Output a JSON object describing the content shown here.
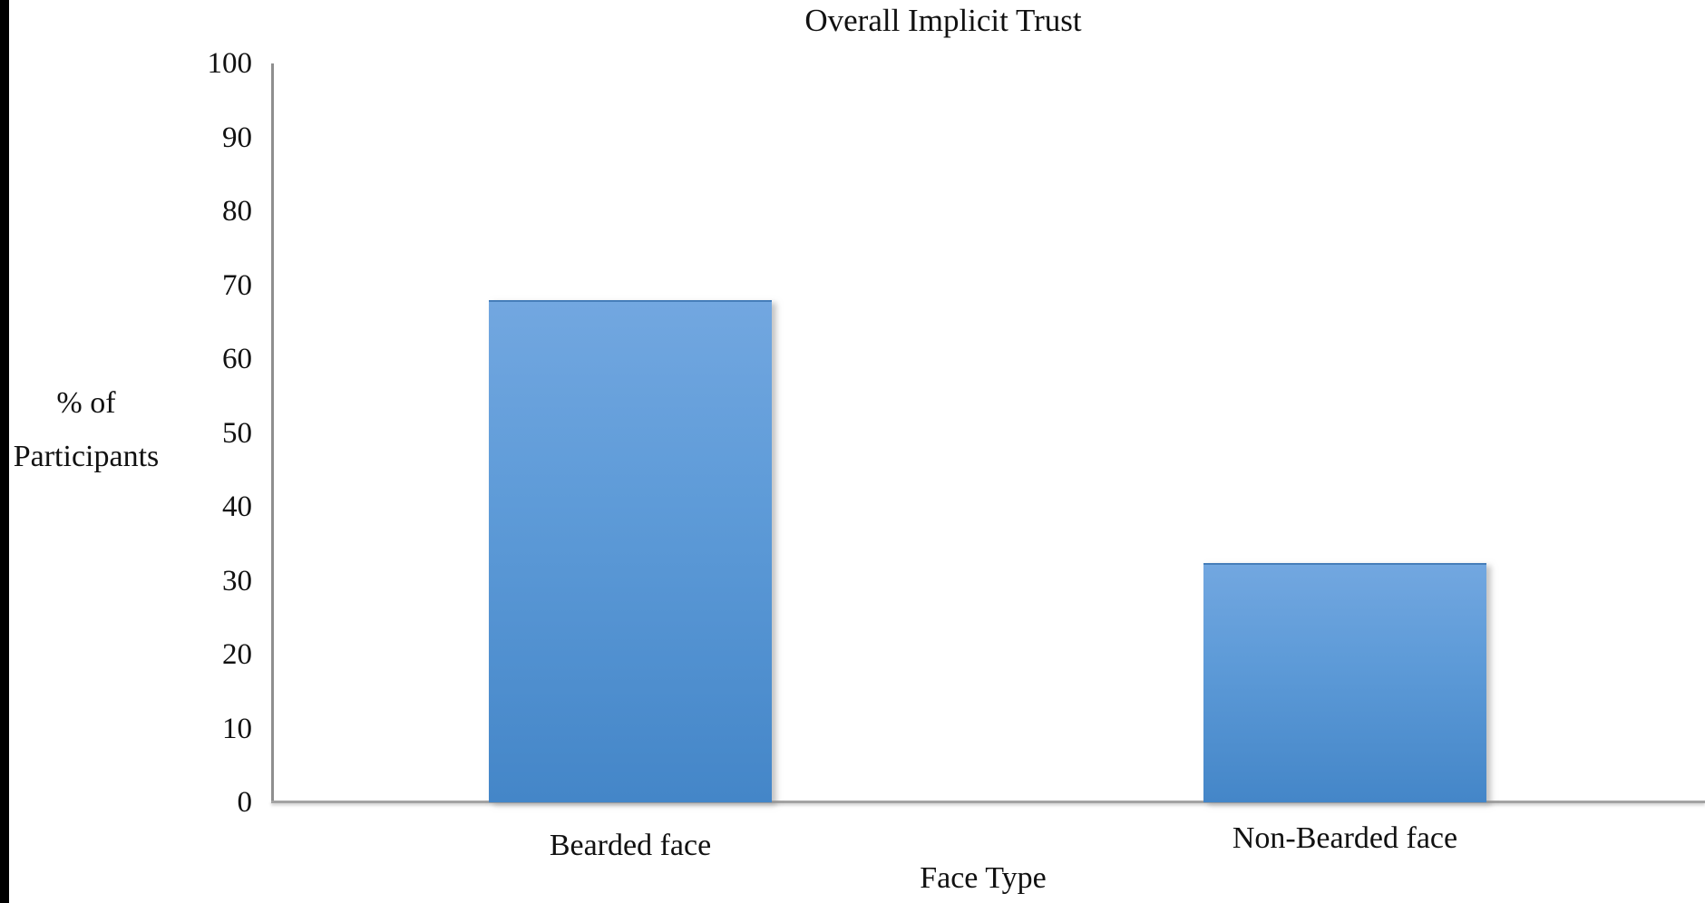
{
  "chart_data": {
    "type": "bar",
    "title": "Overall Implicit Trust",
    "xlabel": "Face Type",
    "ylabel": "% of Participants",
    "ylabel_lines": [
      "% of",
      "Participants"
    ],
    "categories": [
      "Bearded face",
      "Non-Bearded face"
    ],
    "values": [
      68,
      32.4
    ],
    "ylim": [
      0,
      100
    ],
    "yticks": [
      0,
      10,
      20,
      30,
      40,
      50,
      60,
      70,
      80,
      90,
      100
    ],
    "grid": false,
    "legend": false,
    "bar_color_top": "#72a7e0",
    "bar_color_bottom": "#4486c8",
    "axis_color": "#8f8f8f",
    "text_color": "#111111",
    "background_color": "#ffffff",
    "scan_border_color": "#000000"
  }
}
